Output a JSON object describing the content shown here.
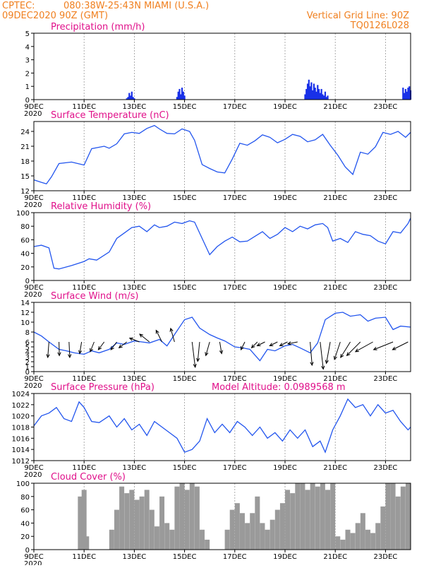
{
  "header": {
    "source": "CPTEC:",
    "location": "080:38W-25:43N   MIAMI (U.S.A.)",
    "datetime": "09DEC2020 90Z (GMT)",
    "grid_note": "Vertical Grid Line: 90Z",
    "run_code": "TQ0126L028",
    "stub_label": "2020"
  },
  "x_axis": {
    "ticks": [
      "9DEC",
      "11DEC",
      "13DEC",
      "15DEC",
      "17DEC",
      "19DEC",
      "21DEC",
      "23DEC"
    ],
    "range_days": [
      9,
      24
    ]
  },
  "chart_data": [
    {
      "id": "precip",
      "type": "bar",
      "title": "Precipitation (mm/h)",
      "ylim": [
        0,
        5
      ],
      "yticks": [
        "0",
        "1",
        "2",
        "3",
        "4",
        "5"
      ],
      "color": "#1830e8",
      "series": [
        {
          "x": [
            12.7,
            12.75,
            12.8,
            12.85,
            12.9,
            12.95,
            13.0,
            14.7,
            14.75,
            14.8,
            14.85,
            14.9,
            14.95,
            15.0,
            19.8,
            19.85,
            19.9,
            19.95,
            20.0,
            20.05,
            20.1,
            20.15,
            20.2,
            20.25,
            20.3,
            20.35,
            20.4,
            20.45,
            20.5,
            20.55,
            20.6,
            20.65,
            20.7,
            23.7,
            23.75,
            23.8,
            23.85,
            23.9,
            23.95,
            24.0
          ],
          "values": [
            0.1,
            0.2,
            0.5,
            0.3,
            0.6,
            0.2,
            0.1,
            0.2,
            0.6,
            0.8,
            0.4,
            0.9,
            0.6,
            0.3,
            0.4,
            0.8,
            1.2,
            1.5,
            1.0,
            1.3,
            0.7,
            1.2,
            0.9,
            0.6,
            1.1,
            0.8,
            0.5,
            0.8,
            0.4,
            0.3,
            0.6,
            0.2,
            0.3,
            0.9,
            0.5,
            0.8,
            0.6,
            0.9,
            1.0,
            0.7
          ]
        }
      ]
    },
    {
      "id": "temperature",
      "type": "line",
      "title": "Surface Temperature (nC)",
      "ylim": [
        12,
        26
      ],
      "yticks": [
        "12",
        "15",
        "18",
        "21",
        "24"
      ],
      "color": "#2255ee",
      "series": [
        {
          "x": [
            9.0,
            9.3,
            9.5,
            9.7,
            10.0,
            10.5,
            11.0,
            11.3,
            11.8,
            12.0,
            12.3,
            12.6,
            12.9,
            13.2,
            13.5,
            13.8,
            14.0,
            14.3,
            14.6,
            14.9,
            15.2,
            15.4,
            15.7,
            16.0,
            16.3,
            16.6,
            16.9,
            17.2,
            17.5,
            17.8,
            18.1,
            18.4,
            18.7,
            19.0,
            19.3,
            19.6,
            19.9,
            20.2,
            20.5,
            20.8,
            21.1,
            21.4,
            21.7,
            22.0,
            22.3,
            22.6,
            22.9,
            23.2,
            23.5,
            23.8,
            24.0
          ],
          "values": [
            14.2,
            13.7,
            13.4,
            14.8,
            17.5,
            17.8,
            17.2,
            20.5,
            21.0,
            20.6,
            21.5,
            23.5,
            23.8,
            23.6,
            24.6,
            25.2,
            24.5,
            23.6,
            23.5,
            24.5,
            24.0,
            22.2,
            17.3,
            16.5,
            15.8,
            15.6,
            18.4,
            21.6,
            21.2,
            22.1,
            23.3,
            22.8,
            21.7,
            22.4,
            23.4,
            23.0,
            21.9,
            22.3,
            23.4,
            21.2,
            19.2,
            16.8,
            15.3,
            19.8,
            19.4,
            20.9,
            23.8,
            23.4,
            24.0,
            22.8,
            23.8
          ]
        }
      ]
    },
    {
      "id": "humidity",
      "type": "line",
      "title": "Relative Humidity (%)",
      "ylim": [
        0,
        100
      ],
      "yticks": [
        "0",
        "20",
        "40",
        "60",
        "80",
        "100"
      ],
      "color": "#2255ee",
      "series": [
        {
          "x": [
            9.0,
            9.3,
            9.6,
            9.8,
            10.0,
            10.5,
            11.0,
            11.2,
            11.5,
            12.0,
            12.3,
            12.6,
            12.9,
            13.2,
            13.5,
            13.8,
            14.0,
            14.3,
            14.6,
            14.9,
            15.2,
            15.4,
            15.7,
            16.0,
            16.3,
            16.6,
            16.9,
            17.2,
            17.5,
            17.8,
            18.1,
            18.4,
            18.7,
            19.0,
            19.3,
            19.6,
            19.9,
            20.2,
            20.5,
            20.7,
            20.9,
            21.2,
            21.5,
            21.8,
            22.1,
            22.4,
            22.7,
            23.0,
            23.3,
            23.6,
            23.9,
            24.0
          ],
          "values": [
            50,
            52,
            48,
            18,
            17,
            22,
            28,
            32,
            30,
            42,
            62,
            70,
            78,
            80,
            72,
            82,
            78,
            80,
            86,
            84,
            88,
            86,
            62,
            38,
            50,
            58,
            64,
            57,
            58,
            65,
            72,
            62,
            68,
            78,
            72,
            80,
            76,
            82,
            84,
            78,
            58,
            62,
            56,
            72,
            68,
            66,
            58,
            54,
            72,
            70,
            84,
            92
          ]
        }
      ]
    },
    {
      "id": "wind",
      "type": "line",
      "title": "Surface Wind (m/s)",
      "ylim": [
        0,
        14
      ],
      "yticks": [
        "0",
        "1",
        "2",
        "3",
        "4",
        "5",
        "6",
        "8",
        "10",
        "12",
        "14"
      ],
      "color": "#2255ee",
      "series": [
        {
          "x": [
            9.0,
            9.3,
            9.6,
            10.0,
            10.3,
            10.6,
            11.0,
            11.3,
            11.6,
            12.0,
            12.3,
            12.6,
            13.0,
            13.3,
            13.6,
            14.0,
            14.3,
            14.6,
            15.0,
            15.3,
            15.6,
            16.0,
            16.3,
            16.6,
            17.0,
            17.3,
            17.6,
            18.0,
            18.3,
            18.6,
            19.0,
            19.3,
            19.6,
            20.0,
            20.3,
            20.6,
            21.0,
            21.3,
            21.6,
            22.0,
            22.3,
            22.6,
            23.0,
            23.3,
            23.6,
            24.0
          ],
          "values": [
            8.0,
            7.2,
            6.0,
            4.5,
            4.2,
            3.8,
            3.5,
            4.2,
            3.8,
            4.5,
            5.8,
            5.5,
            6.2,
            6.0,
            5.8,
            6.5,
            5.2,
            7.5,
            10.5,
            11.0,
            8.8,
            7.5,
            6.8,
            6.2,
            5.0,
            4.8,
            4.5,
            2.2,
            4.5,
            4.2,
            5.2,
            5.5,
            4.8,
            3.8,
            5.8,
            10.5,
            11.8,
            12.0,
            11.2,
            11.5,
            10.2,
            10.8,
            11.0,
            8.5,
            9.2,
            9.0
          ]
        }
      ],
      "vectors": [
        {
          "x": 9.6,
          "u": -0.3,
          "v": -4.0
        },
        {
          "x": 10.0,
          "u": 0.1,
          "v": -3.5
        },
        {
          "x": 10.4,
          "u": 0.2,
          "v": -4.0
        },
        {
          "x": 10.9,
          "u": -0.5,
          "v": -3.0
        },
        {
          "x": 11.4,
          "u": -1.0,
          "v": -2.5
        },
        {
          "x": 11.8,
          "u": -1.5,
          "v": -2.0
        },
        {
          "x": 12.3,
          "u": -1.5,
          "v": -2.0
        },
        {
          "x": 12.7,
          "u": -2.0,
          "v": -1.5
        },
        {
          "x": 13.2,
          "u": -2.5,
          "v": 1.0
        },
        {
          "x": 13.6,
          "u": -2.5,
          "v": 2.0
        },
        {
          "x": 14.1,
          "u": -1.5,
          "v": 3.0
        },
        {
          "x": 14.6,
          "u": -1.0,
          "v": 3.5
        },
        {
          "x": 15.3,
          "u": 0.8,
          "v": -6.5
        },
        {
          "x": 15.6,
          "u": -0.5,
          "v": -5.0
        },
        {
          "x": 16.0,
          "u": -1.0,
          "v": -3.5
        },
        {
          "x": 16.4,
          "u": 0.5,
          "v": -3.0
        },
        {
          "x": 17.4,
          "u": -1.0,
          "v": -2.0
        },
        {
          "x": 17.9,
          "u": -1.5,
          "v": -1.5
        },
        {
          "x": 18.2,
          "u": -2.0,
          "v": -1.0
        },
        {
          "x": 18.7,
          "u": -2.0,
          "v": -1.0
        },
        {
          "x": 19.1,
          "u": -2.0,
          "v": -1.0
        },
        {
          "x": 19.5,
          "u": -2.5,
          "v": -0.5
        },
        {
          "x": 20.0,
          "u": 0.5,
          "v": -6.0
        },
        {
          "x": 20.4,
          "u": 0.8,
          "v": -7.0
        },
        {
          "x": 20.8,
          "u": -1.0,
          "v": -5.5
        },
        {
          "x": 21.2,
          "u": -1.5,
          "v": -4.5
        },
        {
          "x": 21.6,
          "u": -2.5,
          "v": -4.0
        },
        {
          "x": 22.0,
          "u": -3.5,
          "v": -3.5
        },
        {
          "x": 22.5,
          "u": -4.5,
          "v": -2.5
        },
        {
          "x": 23.3,
          "u": -5.0,
          "v": -2.0
        },
        {
          "x": 23.9,
          "u": -4.0,
          "v": -2.0
        }
      ]
    },
    {
      "id": "pressure",
      "type": "line",
      "title": "Surface Pressure (hPa)",
      "annotation": "Model Altitude: 0.0989568 m",
      "ylim": [
        1012,
        1024
      ],
      "yticks": [
        "1012",
        "1014",
        "1016",
        "1018",
        "1020",
        "1022",
        "1024"
      ],
      "color": "#2255ee",
      "series": [
        {
          "x": [
            9.0,
            9.3,
            9.6,
            9.9,
            10.2,
            10.5,
            10.8,
            11.0,
            11.3,
            11.6,
            12.0,
            12.3,
            12.6,
            12.9,
            13.2,
            13.5,
            13.8,
            14.1,
            14.4,
            14.7,
            15.0,
            15.3,
            15.6,
            15.9,
            16.2,
            16.5,
            16.8,
            17.1,
            17.4,
            17.7,
            18.0,
            18.3,
            18.6,
            18.9,
            19.2,
            19.5,
            19.8,
            20.1,
            20.4,
            20.6,
            20.9,
            21.2,
            21.5,
            21.8,
            22.1,
            22.4,
            22.7,
            23.0,
            23.3,
            23.6,
            23.9,
            24.0
          ],
          "values": [
            1018.2,
            1020.0,
            1020.5,
            1021.5,
            1019.5,
            1019.0,
            1022.5,
            1021.5,
            1019.0,
            1018.8,
            1020.0,
            1018.0,
            1019.5,
            1017.5,
            1018.5,
            1016.5,
            1019.0,
            1018.0,
            1017.0,
            1016.0,
            1013.5,
            1014.0,
            1015.5,
            1019.5,
            1017.0,
            1018.5,
            1017.0,
            1019.0,
            1018.0,
            1016.5,
            1018.0,
            1016.0,
            1017.0,
            1015.5,
            1017.5,
            1016.0,
            1017.5,
            1014.5,
            1015.5,
            1013.5,
            1017.5,
            1020.0,
            1023.0,
            1021.5,
            1022.0,
            1020.0,
            1022.0,
            1020.5,
            1021.0,
            1019.0,
            1017.5,
            1018.0
          ]
        }
      ]
    },
    {
      "id": "cloud",
      "type": "bar",
      "title": "Cloud Cover (%)",
      "ylim": [
        0,
        100
      ],
      "yticks": [
        "0",
        "20",
        "40",
        "60",
        "80",
        "100"
      ],
      "color": "#9a9a9a",
      "series": [
        {
          "x": [
            10.85,
            11.0,
            11.1,
            12.1,
            12.3,
            12.5,
            12.7,
            12.9,
            13.1,
            13.3,
            13.5,
            13.7,
            13.9,
            14.1,
            14.3,
            14.5,
            14.7,
            14.9,
            15.1,
            15.3,
            15.5,
            15.7,
            15.9,
            16.7,
            16.9,
            17.1,
            17.3,
            17.5,
            17.7,
            17.9,
            18.1,
            18.3,
            18.5,
            18.7,
            18.9,
            19.1,
            19.3,
            19.5,
            19.7,
            19.9,
            20.1,
            20.3,
            20.5,
            20.7,
            20.9,
            21.1,
            21.3,
            21.5,
            21.7,
            21.9,
            22.1,
            22.3,
            22.5,
            22.7,
            22.9,
            23.1,
            23.3,
            23.5,
            23.7,
            23.9
          ],
          "values": [
            80,
            90,
            20,
            30,
            60,
            95,
            85,
            90,
            75,
            80,
            90,
            60,
            35,
            80,
            40,
            30,
            95,
            100,
            90,
            100,
            95,
            30,
            15,
            30,
            60,
            70,
            55,
            40,
            55,
            80,
            40,
            30,
            45,
            60,
            70,
            90,
            85,
            100,
            100,
            90,
            100,
            95,
            100,
            90,
            100,
            20,
            15,
            30,
            25,
            40,
            55,
            30,
            25,
            40,
            65,
            100,
            100,
            80,
            95,
            100
          ]
        }
      ]
    }
  ]
}
